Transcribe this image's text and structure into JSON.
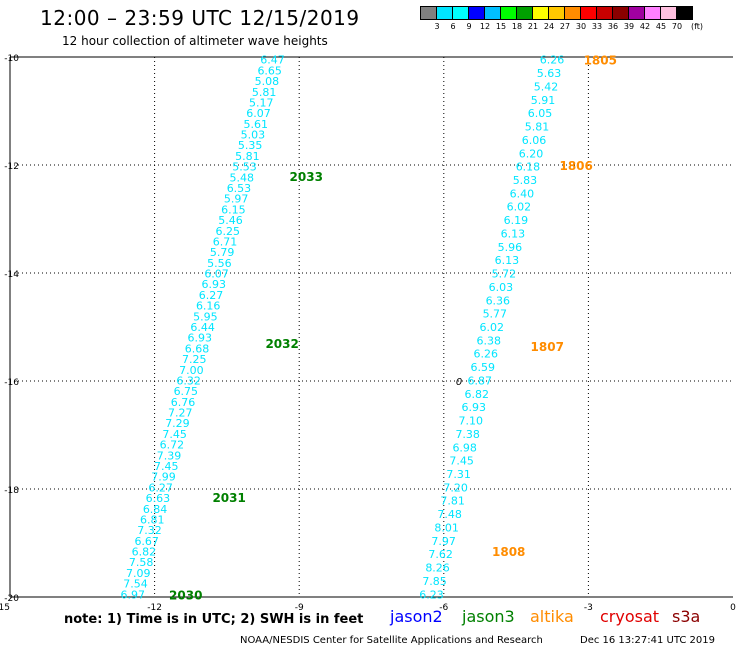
{
  "title": "12:00 – 23:59 UTC 12/15/2019",
  "subtitle": "12 hour collection of altimeter wave heights",
  "colorbar": {
    "colors": [
      "#808080",
      "#00e5ff",
      "#00ffff",
      "#0000ff",
      "#00bfff",
      "#00ff00",
      "#00a000",
      "#ffff00",
      "#ffc800",
      "#ff8c00",
      "#ff0000",
      "#c80000",
      "#8b0000",
      "#a000a0",
      "#ff80ff",
      "#ffc0e0",
      "#000000"
    ],
    "ticks": [
      "3",
      "6",
      "9",
      "12",
      "15",
      "18",
      "21",
      "24",
      "27",
      "30",
      "33",
      "36",
      "39",
      "42",
      "45",
      "70",
      "(ft)"
    ]
  },
  "note": "note: 1) Time is in UTC; 2) SWH is in feet",
  "satellites": [
    {
      "name": "jason2",
      "color": "#0000ff"
    },
    {
      "name": "jason3",
      "color": "#008000"
    },
    {
      "name": "altika",
      "color": "#ff8c00"
    },
    {
      "name": "cryosat",
      "color": "#e00000"
    },
    {
      "name": "s3a",
      "color": "#8b0000"
    }
  ],
  "footer_left": "NOAA/NESDIS Center for Satellite Applications and Research",
  "footer_right": "Dec 16 13:27:41 UTC 2019",
  "chart_data": {
    "type": "scatter",
    "xlim": [
      -15,
      0
    ],
    "ylim": [
      -20,
      -10
    ],
    "x_ticks": [
      "-15",
      "-12",
      "-9",
      "-6",
      "-3",
      "0"
    ],
    "y_ticks": [
      "-10",
      "-12",
      "-14",
      "-16",
      "-18",
      "-20"
    ],
    "grid": true,
    "point_color": "#00e5ff",
    "series": [
      {
        "name": "jason3",
        "x_start": -9.3,
        "x_end": -12.2,
        "y_start": -10.05,
        "y_end": -19.95,
        "values": [
          "6.47",
          "6.65",
          "5.08",
          "5.81",
          "5.17",
          "6.07",
          "5.61",
          "5.03",
          "5.35",
          "5.81",
          "5.53",
          "5.48",
          "6.53",
          "5.97",
          "6.15",
          "5.46",
          "6.25",
          "6.71",
          "5.79",
          "5.56",
          "6.07",
          "6.93",
          "6.27",
          "6.16",
          "5.95",
          "6.44",
          "6.93",
          "6.68",
          "7.25",
          "7.00",
          "6.32",
          "6.75",
          "6.76",
          "7.27",
          "7.29",
          "7.45",
          "6.72",
          "7.39",
          "7.45",
          "7.99",
          "6.27",
          "6.63",
          "6.84",
          "6.81",
          "7.32",
          "6.67",
          "6.82",
          "7.58",
          "7.09",
          "7.54",
          "6.97"
        ],
        "time_labels": [
          {
            "text": "2033",
            "x": -9.2,
            "y": -12.2
          },
          {
            "text": "2032",
            "x": -9.7,
            "y": -15.3
          },
          {
            "text": "2031",
            "x": -10.8,
            "y": -18.15
          },
          {
            "text": "2030",
            "x": -11.7,
            "y": -19.95
          }
        ],
        "label_color": "#008000"
      },
      {
        "name": "altika",
        "x_start": -3.5,
        "x_end": -6.0,
        "y_start": -10.05,
        "y_end": -19.95,
        "values": [
          "6.26",
          "5.63",
          "5.42",
          "5.91",
          "6.05",
          "5.81",
          "6.06",
          "6.20",
          "6.18",
          "5.83",
          "6.40",
          "6.02",
          "6.19",
          "6.13",
          "5.96",
          "6.13",
          "5.72",
          "6.03",
          "6.36",
          "5.77",
          "6.02",
          "6.38",
          "6.26",
          "6.59",
          "6.87",
          "6.82",
          "6.93",
          "7.10",
          "7.38",
          "6.98",
          "7.45",
          "7.31",
          "7.20",
          "7.81",
          "7.48",
          "8.01",
          "7.97",
          "7.62",
          "8.26",
          "7.85",
          "6.23"
        ],
        "time_labels": [
          {
            "text": "1805",
            "x": -3.1,
            "y": -10.05
          },
          {
            "text": "1806",
            "x": -3.6,
            "y": -12.0
          },
          {
            "text": "1807",
            "x": -4.2,
            "y": -15.35
          },
          {
            "text": "1808",
            "x": -5.0,
            "y": -19.15
          }
        ],
        "label_color": "#ff8c00"
      }
    ],
    "annotations": [
      {
        "text": "0",
        "x": -5.75,
        "y": -16.0
      }
    ]
  }
}
